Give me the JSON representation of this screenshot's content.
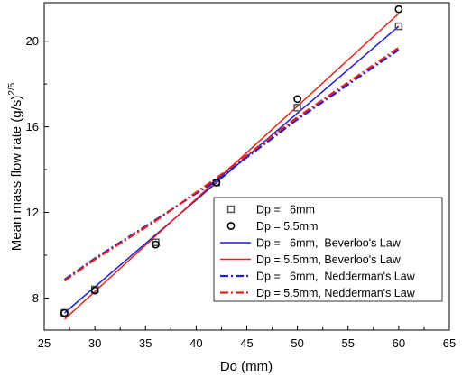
{
  "chart_data": {
    "type": "scatter",
    "xlabel": "Do (mm)",
    "ylabel": "Mean mass flow rate (g/s)",
    "ylabel_sup": "2/5",
    "xlim": [
      25,
      65
    ],
    "ylim": [
      6.5,
      21.8
    ],
    "x_ticks": [
      25,
      30,
      35,
      40,
      45,
      50,
      55,
      60,
      65
    ],
    "y_ticks": [
      8,
      12,
      16,
      20
    ],
    "grid": false,
    "legend_position": "bottom-right",
    "series": [
      {
        "name": "Dp =   6mm",
        "kind": "marker",
        "marker": "square",
        "color": "#555555",
        "points": [
          [
            27,
            7.3
          ],
          [
            30,
            8.4
          ],
          [
            36,
            10.6
          ],
          [
            42,
            13.4
          ],
          [
            50,
            16.9
          ],
          [
            60,
            20.7
          ]
        ]
      },
      {
        "name": "Dp = 5.5mm",
        "kind": "marker",
        "marker": "circle",
        "color": "#000000",
        "points": [
          [
            27,
            7.3
          ],
          [
            30,
            8.35
          ],
          [
            36,
            10.5
          ],
          [
            42,
            13.4
          ],
          [
            50,
            17.3
          ],
          [
            60,
            21.5
          ]
        ]
      },
      {
        "name": "Dp =   6mm,  Beverloo's Law",
        "kind": "line",
        "style": "solid",
        "color": "#1f1fd6",
        "points": [
          [
            27,
            7.3
          ],
          [
            60,
            20.7
          ]
        ]
      },
      {
        "name": "Dp = 5.5mm, Beverloo's Law",
        "kind": "line",
        "style": "solid",
        "color": "#e8231b",
        "points": [
          [
            27,
            7.0
          ],
          [
            60,
            21.3
          ]
        ]
      },
      {
        "name": "Dp =   6mm,  Nedderman's Law",
        "kind": "line",
        "style": "dashdot",
        "color": "#1f1fd6",
        "points": [
          [
            27,
            8.85
          ],
          [
            30,
            9.85
          ],
          [
            36,
            11.65
          ],
          [
            42,
            13.5
          ],
          [
            50,
            16.35
          ],
          [
            60,
            19.6
          ]
        ]
      },
      {
        "name": "Dp = 5.5mm, Nedderman's Law",
        "kind": "line",
        "style": "dashdot",
        "color": "#e8231b",
        "points": [
          [
            27,
            8.8
          ],
          [
            30,
            9.8
          ],
          [
            36,
            11.6
          ],
          [
            42,
            13.6
          ],
          [
            50,
            16.45
          ],
          [
            60,
            19.7
          ]
        ]
      }
    ]
  }
}
